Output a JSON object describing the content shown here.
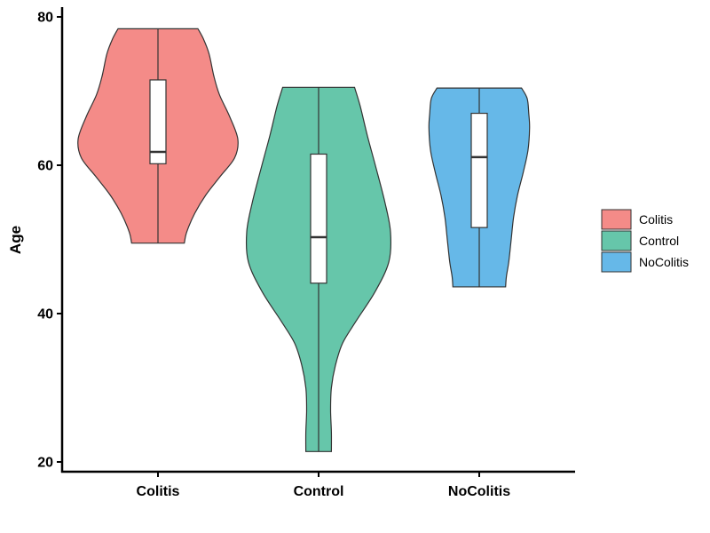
{
  "chart_data": {
    "type": "violin",
    "title": "",
    "xlabel": "",
    "ylabel": "Age",
    "ylim": [
      19,
      82
    ],
    "yticks": [
      20,
      40,
      60,
      80
    ],
    "categories": [
      "Colitis",
      "Control",
      "NoColitis"
    ],
    "colors": {
      "Colitis": "#F48B88",
      "Control": "#66C6AA",
      "NoColitis": "#66B8E8"
    },
    "legend": {
      "position": "right",
      "entries": [
        "Colitis",
        "Control",
        "NoColitis"
      ]
    },
    "grid": false,
    "series": [
      {
        "name": "Colitis",
        "min": 49.5,
        "max": 78.4,
        "q1": 60.2,
        "median": 61.8,
        "q3": 71.5,
        "density": [
          [
            78.4,
            0.5
          ],
          [
            77,
            0.57
          ],
          [
            75,
            0.64
          ],
          [
            72,
            0.7
          ],
          [
            69.5,
            0.77
          ],
          [
            66.5,
            0.9
          ],
          [
            63.5,
            1.0
          ],
          [
            61,
            0.96
          ],
          [
            58.5,
            0.78
          ],
          [
            56,
            0.6
          ],
          [
            53.5,
            0.46
          ],
          [
            51,
            0.36
          ],
          [
            49.5,
            0.33
          ]
        ]
      },
      {
        "name": "Control",
        "min": 21.4,
        "max": 70.5,
        "q1": 44.1,
        "median": 50.3,
        "q3": 61.5,
        "density": [
          [
            70.5,
            0.45
          ],
          [
            68,
            0.52
          ],
          [
            64,
            0.61
          ],
          [
            60,
            0.71
          ],
          [
            55,
            0.83
          ],
          [
            51,
            0.9
          ],
          [
            47,
            0.88
          ],
          [
            43,
            0.71
          ],
          [
            39,
            0.47
          ],
          [
            36,
            0.3
          ],
          [
            33,
            0.21
          ],
          [
            30,
            0.16
          ],
          [
            27,
            0.15
          ],
          [
            24,
            0.16
          ],
          [
            21.4,
            0.16
          ]
        ]
      },
      {
        "name": "NoColitis",
        "min": 43.6,
        "max": 70.4,
        "q1": 51.6,
        "median": 61.1,
        "q3": 67.0,
        "density": [
          [
            70.4,
            0.53
          ],
          [
            69,
            0.6
          ],
          [
            67,
            0.62
          ],
          [
            65,
            0.63
          ],
          [
            62,
            0.61
          ],
          [
            59,
            0.55
          ],
          [
            56,
            0.48
          ],
          [
            53,
            0.43
          ],
          [
            50,
            0.4
          ],
          [
            47,
            0.37
          ],
          [
            45,
            0.34
          ],
          [
            43.6,
            0.33
          ]
        ]
      }
    ]
  }
}
